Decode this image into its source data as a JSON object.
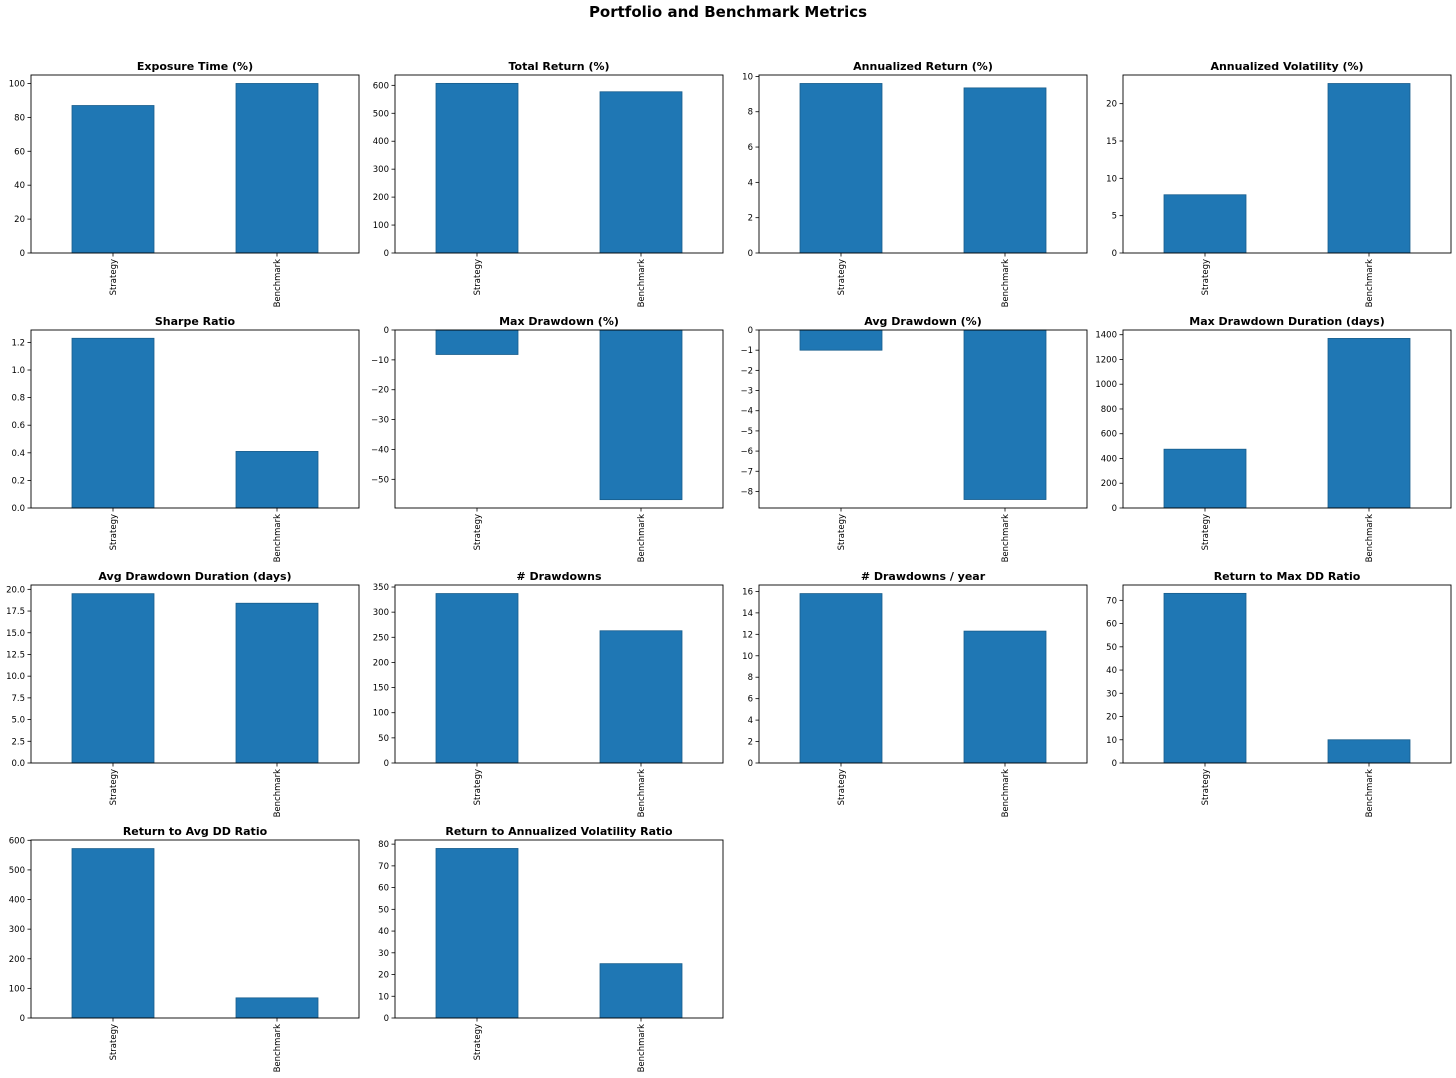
{
  "figure": {
    "title": "Portfolio and Benchmark Metrics",
    "bar_color": "#1f77b4",
    "bar_edge_color": "#185d8c"
  },
  "chart_data": [
    {
      "type": "bar",
      "title": "Exposure Time (%)",
      "categories": [
        "Strategy",
        "Benchmark"
      ],
      "values": [
        87,
        100
      ],
      "ylim": [
        0,
        105
      ],
      "yticks": [
        0,
        20,
        40,
        60,
        80,
        100
      ],
      "ytick_labels": [
        "0",
        "20",
        "40",
        "60",
        "80",
        "100"
      ]
    },
    {
      "type": "bar",
      "title": "Total Return (%)",
      "categories": [
        "Strategy",
        "Benchmark"
      ],
      "values": [
        607,
        577
      ],
      "ylim": [
        0,
        637
      ],
      "yticks": [
        0,
        100,
        200,
        300,
        400,
        500,
        600
      ],
      "ytick_labels": [
        "0",
        "100",
        "200",
        "300",
        "400",
        "500",
        "600"
      ]
    },
    {
      "type": "bar",
      "title": "Annualized Return (%)",
      "categories": [
        "Strategy",
        "Benchmark"
      ],
      "values": [
        9.6,
        9.35
      ],
      "ylim": [
        0,
        10.08
      ],
      "yticks": [
        0,
        2,
        4,
        6,
        8,
        10
      ],
      "ytick_labels": [
        "0",
        "2",
        "4",
        "6",
        "8",
        "10"
      ]
    },
    {
      "type": "bar",
      "title": "Annualized Volatility (%)",
      "categories": [
        "Strategy",
        "Benchmark"
      ],
      "values": [
        7.8,
        22.7
      ],
      "ylim": [
        0,
        23.84
      ],
      "yticks": [
        0,
        5,
        10,
        15,
        20
      ],
      "ytick_labels": [
        "0",
        "5",
        "10",
        "15",
        "20"
      ]
    },
    {
      "type": "bar",
      "title": "Sharpe Ratio",
      "categories": [
        "Strategy",
        "Benchmark"
      ],
      "values": [
        1.23,
        0.41
      ],
      "ylim": [
        0,
        1.29
      ],
      "yticks": [
        0,
        0.2,
        0.4,
        0.6,
        0.8,
        1.0,
        1.2
      ],
      "ytick_labels": [
        "0.0",
        "0.2",
        "0.4",
        "0.6",
        "0.8",
        "1.0",
        "1.2"
      ]
    },
    {
      "type": "bar",
      "title": "Max Drawdown (%)",
      "categories": [
        "Strategy",
        "Benchmark"
      ],
      "values": [
        -8.2,
        -56.8
      ],
      "ylim": [
        -59.6,
        0
      ],
      "yticks": [
        0,
        -10,
        -20,
        -30,
        -40,
        -50
      ],
      "ytick_labels": [
        "0",
        "−10",
        "−20",
        "−30",
        "−40",
        "−50"
      ]
    },
    {
      "type": "bar",
      "title": "Avg Drawdown (%)",
      "categories": [
        "Strategy",
        "Benchmark"
      ],
      "values": [
        -1.0,
        -8.4
      ],
      "ylim": [
        -8.82,
        0
      ],
      "yticks": [
        0,
        -1,
        -2,
        -3,
        -4,
        -5,
        -6,
        -7,
        -8
      ],
      "ytick_labels": [
        "0",
        "−1",
        "−2",
        "−3",
        "−4",
        "−5",
        "−6",
        "−7",
        "−8"
      ]
    },
    {
      "type": "bar",
      "title": "Max Drawdown Duration (days)",
      "categories": [
        "Strategy",
        "Benchmark"
      ],
      "values": [
        475,
        1370
      ],
      "ylim": [
        0,
        1438
      ],
      "yticks": [
        0,
        200,
        400,
        600,
        800,
        1000,
        1200,
        1400
      ],
      "ytick_labels": [
        "0",
        "200",
        "400",
        "600",
        "800",
        "1000",
        "1200",
        "1400"
      ]
    },
    {
      "type": "bar",
      "title": "Avg Drawdown Duration (days)",
      "categories": [
        "Strategy",
        "Benchmark"
      ],
      "values": [
        19.5,
        18.4
      ],
      "ylim": [
        0,
        20.5
      ],
      "yticks": [
        0,
        2.5,
        5,
        7.5,
        10,
        12.5,
        15,
        17.5,
        20
      ],
      "ytick_labels": [
        "0.0",
        "2.5",
        "5.0",
        "7.5",
        "10.0",
        "12.5",
        "15.0",
        "17.5",
        "20.0"
      ]
    },
    {
      "type": "bar",
      "title": "# Drawdowns",
      "categories": [
        "Strategy",
        "Benchmark"
      ],
      "values": [
        337,
        263
      ],
      "ylim": [
        0,
        354
      ],
      "yticks": [
        0,
        50,
        100,
        150,
        200,
        250,
        300,
        350
      ],
      "ytick_labels": [
        "0",
        "50",
        "100",
        "150",
        "200",
        "250",
        "300",
        "350"
      ]
    },
    {
      "type": "bar",
      "title": "# Drawdowns / year",
      "categories": [
        "Strategy",
        "Benchmark"
      ],
      "values": [
        15.8,
        12.3
      ],
      "ylim": [
        0,
        16.6
      ],
      "yticks": [
        0,
        2,
        4,
        6,
        8,
        10,
        12,
        14,
        16
      ],
      "ytick_labels": [
        "0",
        "2",
        "4",
        "6",
        "8",
        "10",
        "12",
        "14",
        "16"
      ]
    },
    {
      "type": "bar",
      "title": "Return to Max DD Ratio",
      "categories": [
        "Strategy",
        "Benchmark"
      ],
      "values": [
        73,
        10
      ],
      "ylim": [
        0,
        76.6
      ],
      "yticks": [
        0,
        10,
        20,
        30,
        40,
        50,
        60,
        70
      ],
      "ytick_labels": [
        "0",
        "10",
        "20",
        "30",
        "40",
        "50",
        "60",
        "70"
      ]
    },
    {
      "type": "bar",
      "title": "Return to Avg DD Ratio",
      "categories": [
        "Strategy",
        "Benchmark"
      ],
      "values": [
        572,
        68
      ],
      "ylim": [
        0,
        601
      ],
      "yticks": [
        0,
        100,
        200,
        300,
        400,
        500,
        600
      ],
      "ytick_labels": [
        "0",
        "100",
        "200",
        "300",
        "400",
        "500",
        "600"
      ]
    },
    {
      "type": "bar",
      "title": "Return to Annualized Volatility Ratio",
      "categories": [
        "Strategy",
        "Benchmark"
      ],
      "values": [
        78,
        25
      ],
      "ylim": [
        0,
        81.9
      ],
      "yticks": [
        0,
        10,
        20,
        30,
        40,
        50,
        60,
        70,
        80
      ],
      "ytick_labels": [
        "0",
        "10",
        "20",
        "30",
        "40",
        "50",
        "60",
        "70",
        "80"
      ]
    }
  ]
}
